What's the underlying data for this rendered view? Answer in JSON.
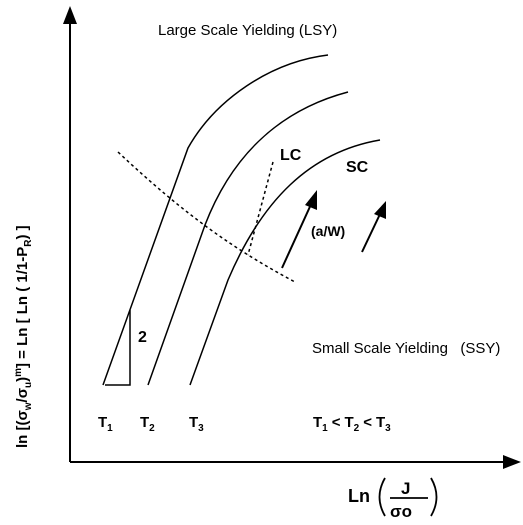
{
  "regions": {
    "lsy": "Large Scale Yielding (LSY)",
    "ssy": "Small Scale Yielding   (SSY)"
  },
  "curves": {
    "lc": "LC",
    "sc": "SC"
  },
  "crack_ratio": "(a/W)",
  "slope_value": "2",
  "temperatures": {
    "base": "T",
    "t1_sub": "1",
    "t2_sub": "2",
    "t3_sub": "3"
  },
  "temperature_order": {
    "t": "T",
    "lt": "<",
    "s1": "1",
    "s2": "2",
    "s3": "3"
  },
  "y_axis": {
    "part1": "ln [(σ",
    "sub_w": "w",
    "part2": "/σ",
    "sub_u": "u",
    "part3": ")",
    "sup_m": "m",
    "part4": "] = Ln [ Ln ( 1/1-P",
    "sub_r": "R",
    "part5": ") ]"
  },
  "x_axis": {
    "ln": "Ln",
    "numerator": "J",
    "denominator": "σo"
  }
}
